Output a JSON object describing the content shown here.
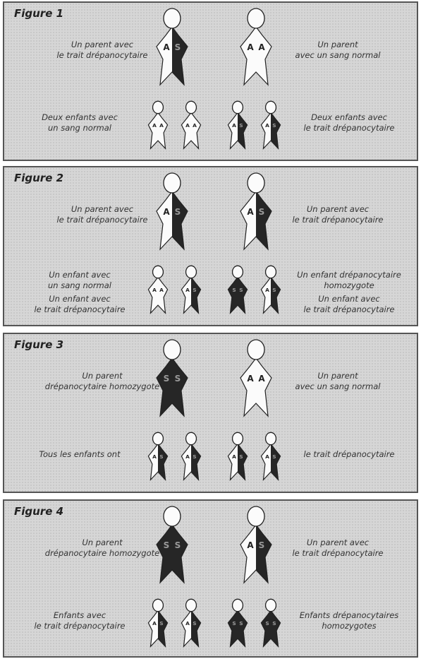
{
  "figures": [
    {
      "title": "Figure 1",
      "labels": {
        "top_left": [
          "Un parent avec",
          "le trait drépanocytaire"
        ],
        "top_right": [
          "Un parent",
          "avec un sang normal"
        ],
        "bottom_left": [
          "Deux enfants avec",
          "un sang normal"
        ],
        "bottom_right": [
          "Deux enfants avec",
          "le trait drépanocytaire"
        ]
      },
      "parents": [
        [
          "A",
          "S"
        ],
        [
          "A",
          "A"
        ]
      ],
      "children": [
        [
          "A",
          "A"
        ],
        [
          "A",
          "A"
        ],
        [
          "A",
          "S"
        ],
        [
          "A",
          "S"
        ]
      ]
    },
    {
      "title": "Figure 2",
      "labels": {
        "top_left": [
          "Un parent avec",
          "le trait drépanocytaire"
        ],
        "top_right": [
          "Un parent avec",
          "le trait drépanocytaire"
        ],
        "bottom_left": [
          "Un enfant avec",
          "un sang normal",
          "Un enfant avec",
          "le trait drépanocytaire"
        ],
        "bottom_right": [
          "Un enfant drépanocytaire",
          "homozygote",
          "Un enfant avec",
          "le trait drépanocytaire"
        ]
      },
      "parents": [
        [
          "A",
          "S"
        ],
        [
          "A",
          "S"
        ]
      ],
      "children": [
        [
          "A",
          "A"
        ],
        [
          "A",
          "S"
        ],
        [
          "S",
          "S"
        ],
        [
          "A",
          "S"
        ]
      ]
    },
    {
      "title": "Figure 3",
      "labels": {
        "top_left": [
          "Un parent",
          "drépanocytaire homozygote"
        ],
        "top_right": [
          "Un parent",
          "avec un sang normal"
        ],
        "bottom_left": [
          "Tous les enfants ont"
        ],
        "bottom_right": [
          "le trait drépanocytaire"
        ]
      },
      "parents": [
        [
          "S",
          "S"
        ],
        [
          "A",
          "A"
        ]
      ],
      "children": [
        [
          "A",
          "S"
        ],
        [
          "A",
          "S"
        ],
        [
          "A",
          "S"
        ],
        [
          "A",
          "S"
        ]
      ]
    },
    {
      "title": "Figure 4",
      "labels": {
        "top_left": [
          "Un parent",
          "drépanocytaire homozygote"
        ],
        "top_right": [
          "Un parent avec",
          "le trait drépanocytaire"
        ],
        "bottom_left": [
          "Enfants avec",
          "le trait drépanocytaire"
        ],
        "bottom_right": [
          "Enfants drépanocytaires",
          "homozygotes"
        ]
      },
      "parents": [
        [
          "S",
          "S"
        ],
        [
          "A",
          "S"
        ]
      ],
      "children": [
        [
          "A",
          "S"
        ],
        [
          "A",
          "S"
        ],
        [
          "S",
          "S"
        ],
        [
          "S",
          "S"
        ]
      ]
    }
  ],
  "colors": {
    "normal": "#fbfbfb",
    "sickle": "#262626",
    "outline": "#222222",
    "panel": "#d6d6d6"
  }
}
